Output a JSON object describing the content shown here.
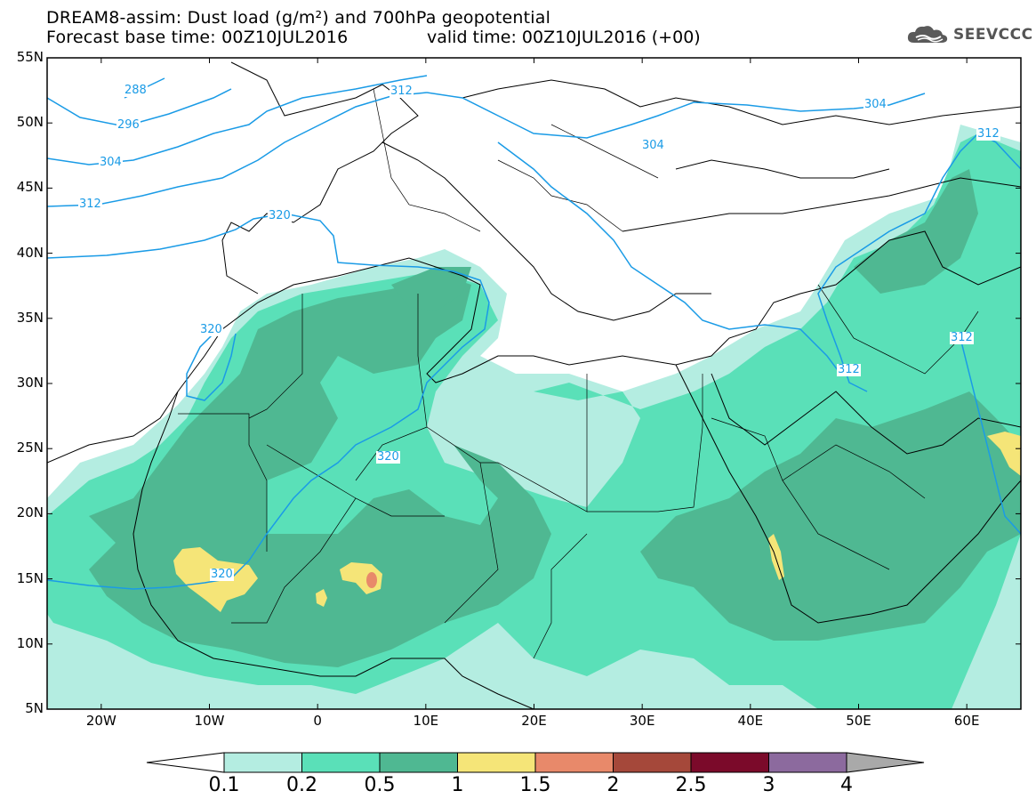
{
  "header": {
    "title_line1": "DREAM8-assim: Dust load (g/m²) and 700hPa geopotential",
    "title_line2": "Forecast base time: 00Z10JUL2016",
    "valid_time": "valid time: 00Z10JUL2016 (+00)",
    "logo_text": "SEEVCCC",
    "logo_icon": "cloud-icon"
  },
  "map": {
    "lat_labels": [
      "55N",
      "50N",
      "45N",
      "40N",
      "35N",
      "30N",
      "25N",
      "20N",
      "15N",
      "10N",
      "5N"
    ],
    "lon_labels": [
      "20W",
      "10W",
      "0",
      "10E",
      "20E",
      "30E",
      "40E",
      "50E",
      "60E"
    ],
    "lat_range": [
      5,
      55
    ],
    "lon_range": [
      -25,
      65
    ],
    "contour_labels": [
      "288",
      "296",
      "304",
      "312",
      "320",
      "312",
      "304",
      "304",
      "312",
      "312",
      "320",
      "320",
      "312",
      "320"
    ],
    "land_color": "#ffffff",
    "line_color": "#1a9be6"
  },
  "colorbar": {
    "labels": [
      "0.1",
      "0.2",
      "0.5",
      "1",
      "1.5",
      "2",
      "2.5",
      "3",
      "4"
    ],
    "colors": [
      "#b4ede1",
      "#5ae0b8",
      "#4fb892",
      "#f5e578",
      "#e8896a",
      "#a5483a",
      "#7b0a2a",
      "#8c6a9e",
      "#a9a9a9"
    ]
  }
}
